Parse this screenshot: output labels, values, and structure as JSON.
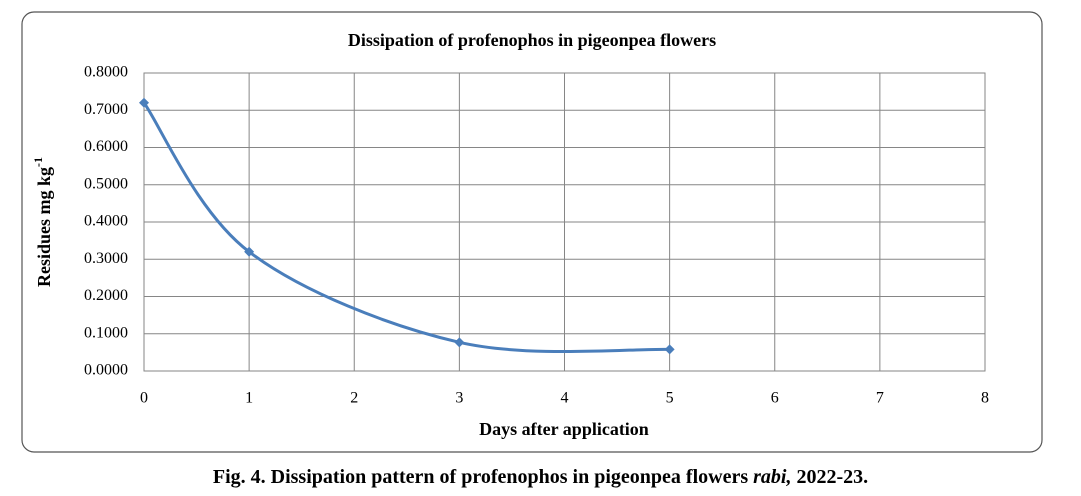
{
  "chart_data": {
    "type": "scatter",
    "line": "smooth",
    "title": "Dissipation of profenophos in pigeonpea flowers",
    "xlabel": "Days after application",
    "ylabel": "Residues mg kg",
    "ylabel_sup": "-1",
    "series": [
      {
        "color": "#4a7ebb",
        "x": [
          0,
          1,
          3,
          5
        ],
        "values": [
          0.72,
          0.32,
          0.077,
          0.058
        ]
      }
    ],
    "xlim": [
      0,
      8
    ],
    "xticks": [
      0,
      1,
      2,
      3,
      4,
      5,
      6,
      7,
      8
    ],
    "ylim": [
      0,
      0.8
    ],
    "yticks": [
      {
        "value": 0,
        "label": "0.0000"
      },
      {
        "value": 0.1,
        "label": "0.1000"
      },
      {
        "value": 0.2,
        "label": "0.2000"
      },
      {
        "value": 0.3,
        "label": "0.3000"
      },
      {
        "value": 0.4,
        "label": "0.4000"
      },
      {
        "value": 0.5,
        "label": "0.5000"
      },
      {
        "value": 0.6,
        "label": "0.6000"
      },
      {
        "value": 0.7,
        "label": "0.7000"
      },
      {
        "value": 0.8,
        "label": "0.8000"
      }
    ],
    "grid": true
  },
  "caption": {
    "main": "Fig. 4. Dissipation pattern of profenophos in pigeonpea flowers",
    "italic": "rabi,",
    "tail": "2022-23."
  }
}
